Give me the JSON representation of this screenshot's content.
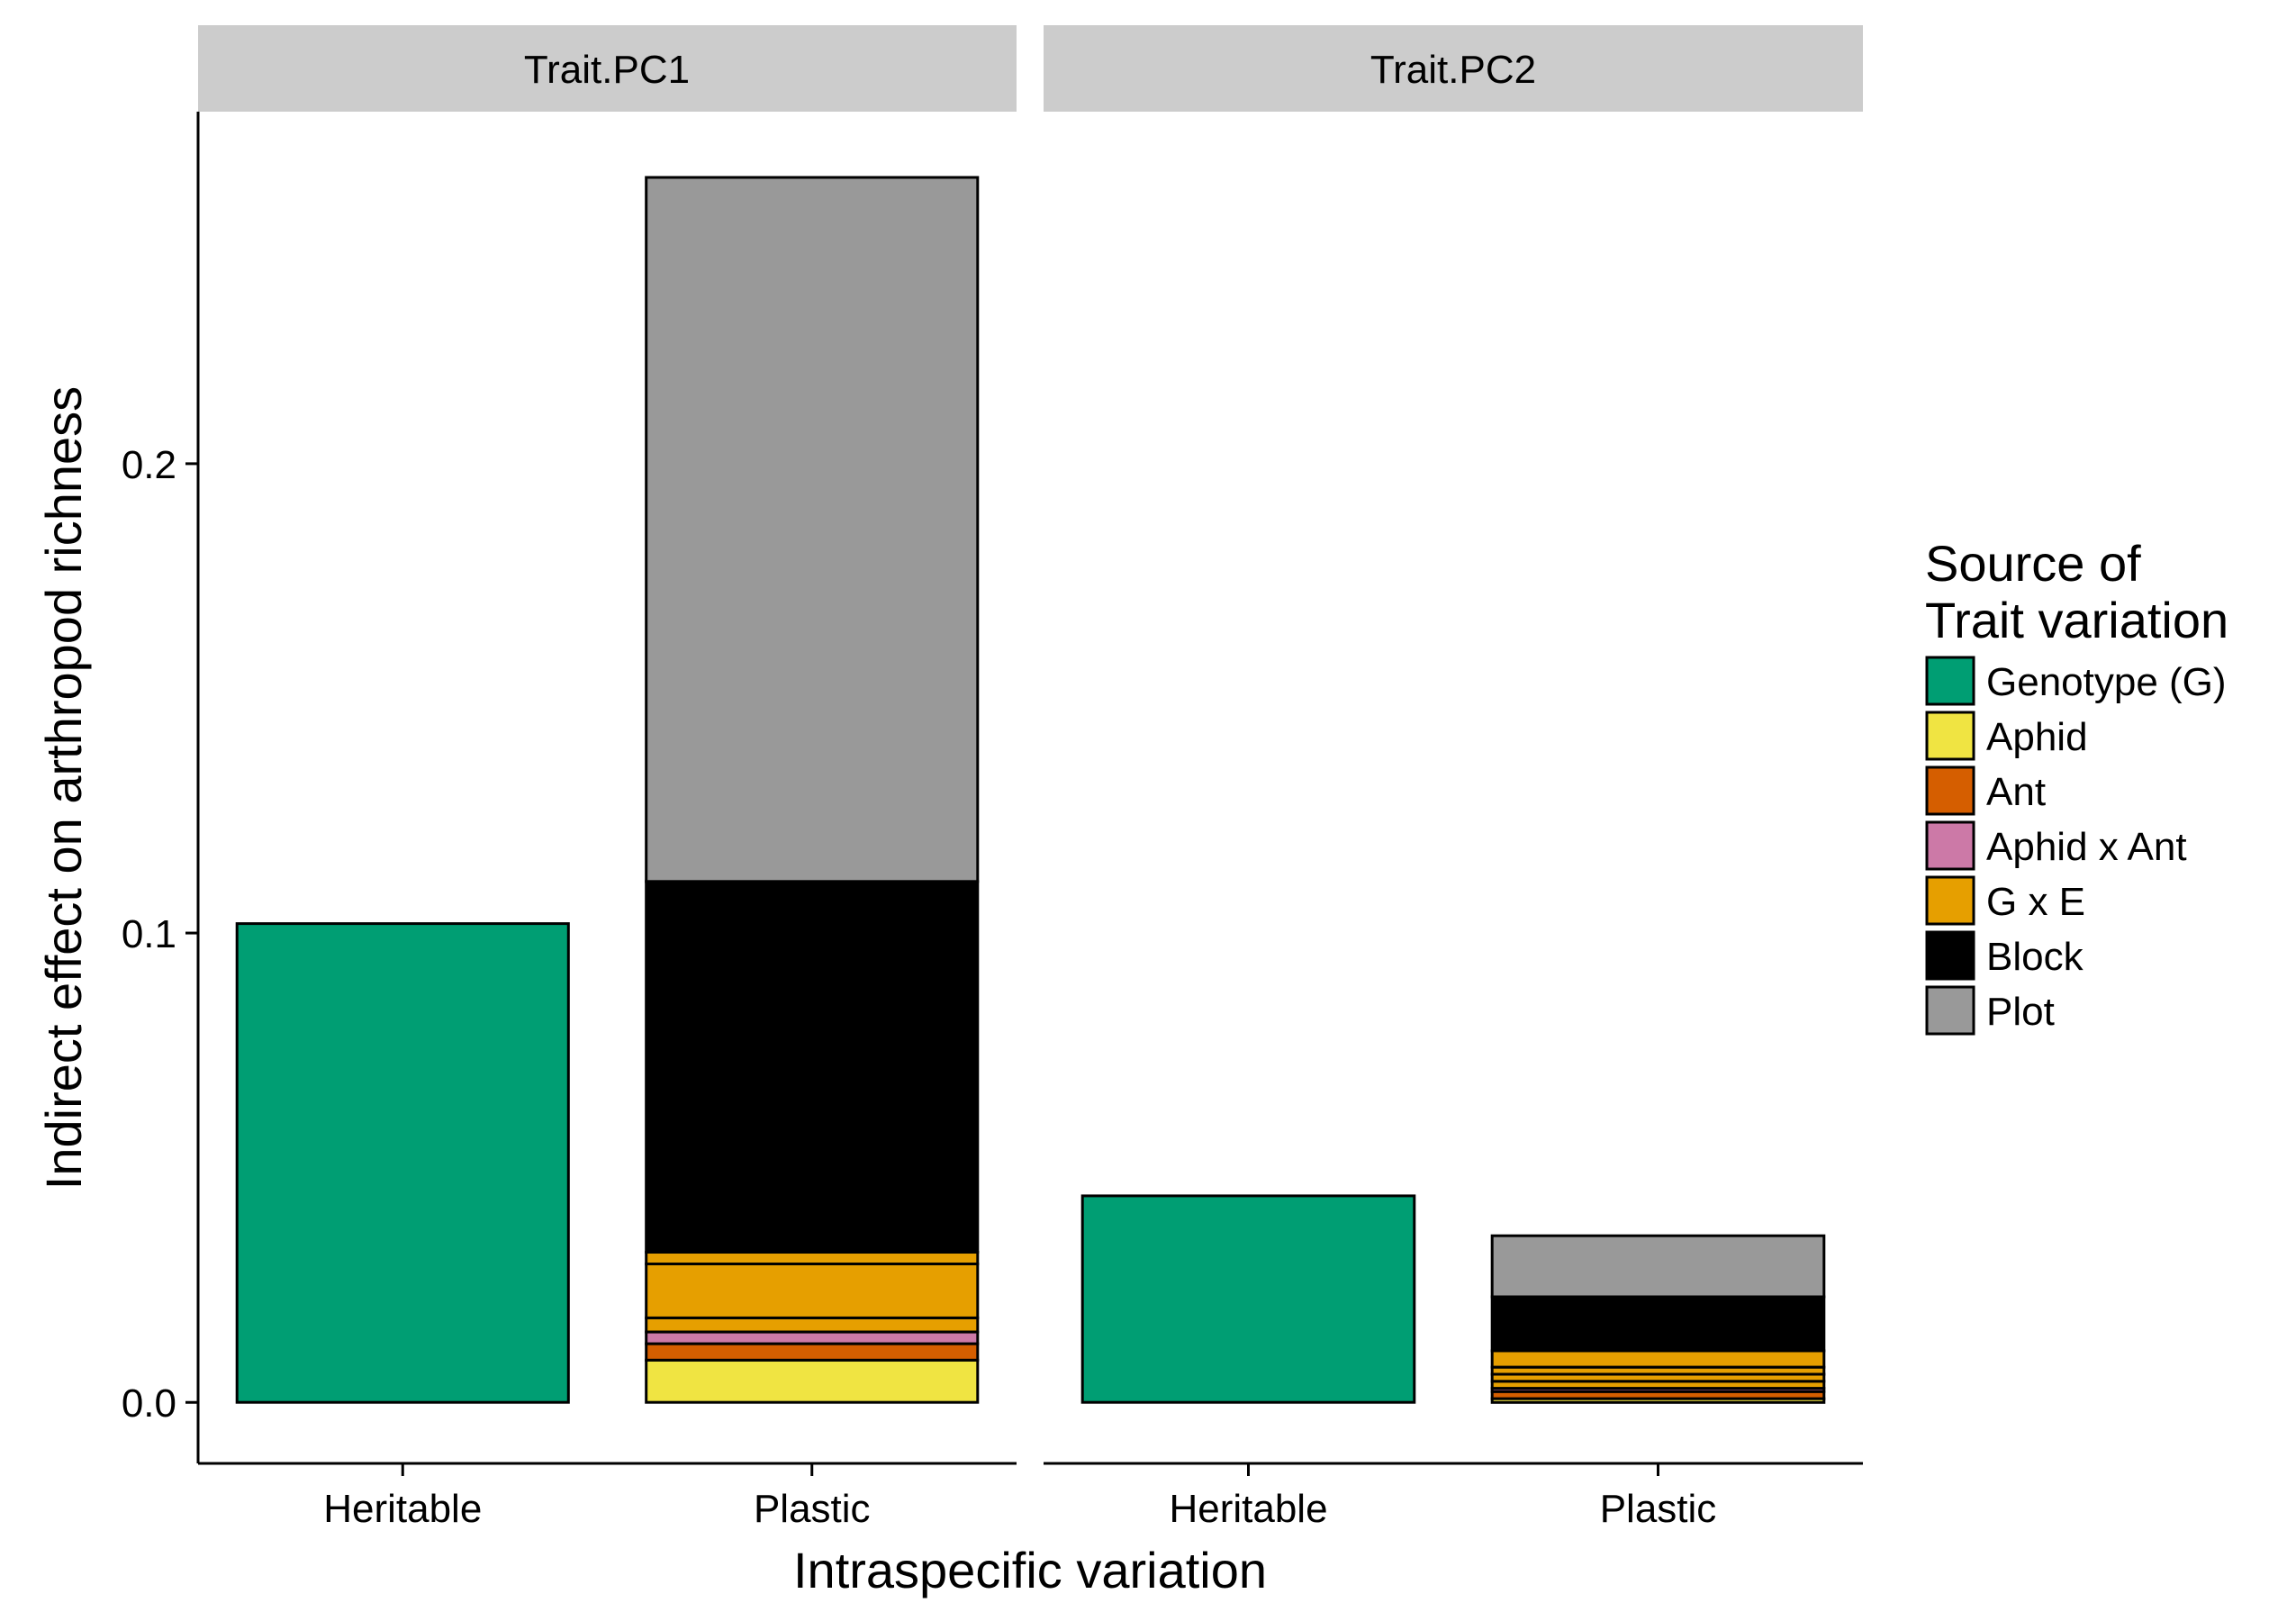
{
  "chart_data": {
    "type": "bar",
    "stacked": true,
    "faceted": true,
    "xlabel": "Intraspecific variation",
    "ylabel": "Indirect effect on arthropod richness",
    "ylim": [
      -0.013,
      0.275
    ],
    "yticks": [
      0.0,
      0.1,
      0.2
    ],
    "ytick_labels": [
      "0.0",
      "0.1",
      "0.2"
    ],
    "categories": [
      "Heritable",
      "Plastic"
    ],
    "grid": false,
    "legend": {
      "title_lines": [
        "Source of",
        "Trait variation"
      ],
      "placement": "right",
      "items": [
        {
          "label": "Genotype (G)",
          "color": "#009E73"
        },
        {
          "label": "Aphid",
          "color": "#F0E442"
        },
        {
          "label": "Ant",
          "color": "#D55E00"
        },
        {
          "label": "Aphid x Ant",
          "color": "#CC79A7"
        },
        {
          "label": "G x E",
          "color": "#E69F00"
        },
        {
          "label": "Block",
          "color": "#000000"
        },
        {
          "label": "Plot",
          "color": "#999999"
        }
      ]
    },
    "panels": [
      {
        "title": "Trait.PC1",
        "bars": [
          {
            "category": "Heritable",
            "segments": [
              {
                "source": "Genotype (G)",
                "value": 0.102
              }
            ]
          },
          {
            "category": "Plastic",
            "segments": [
              {
                "source": "Aphid",
                "value": 0.009
              },
              {
                "source": "Ant",
                "value": 0.0035
              },
              {
                "source": "Aphid x Ant",
                "value": 0.0025
              },
              {
                "source": "G x E",
                "value": 0.003
              },
              {
                "source": "G x E",
                "value": 0.0115
              },
              {
                "source": "G x E",
                "value": 0.0025
              },
              {
                "source": "Block",
                "value": 0.079
              },
              {
                "source": "Plot",
                "value": 0.15
              }
            ]
          }
        ]
      },
      {
        "title": "Trait.PC2",
        "bars": [
          {
            "category": "Heritable",
            "segments": [
              {
                "source": "Genotype (G)",
                "value": 0.044
              }
            ]
          },
          {
            "category": "Plastic",
            "segments": [
              {
                "source": "Aphid",
                "value": 0.0008
              },
              {
                "source": "Ant",
                "value": 0.0015
              },
              {
                "source": "Aphid x Ant",
                "value": 0.0007
              },
              {
                "source": "G x E",
                "value": 0.0015
              },
              {
                "source": "G x E",
                "value": 0.0015
              },
              {
                "source": "G x E",
                "value": 0.0015
              },
              {
                "source": "G x E",
                "value": 0.0035
              },
              {
                "source": "Block",
                "value": 0.0115
              },
              {
                "source": "Plot",
                "value": 0.013
              }
            ]
          }
        ]
      }
    ]
  }
}
